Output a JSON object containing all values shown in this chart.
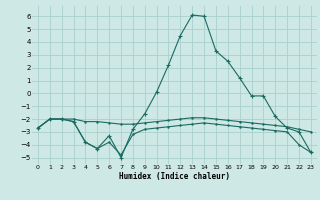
{
  "xlabel": "Humidex (Indice chaleur)",
  "xlim": [
    -0.5,
    23.5
  ],
  "ylim": [
    -5.5,
    6.8
  ],
  "xticks": [
    0,
    1,
    2,
    3,
    4,
    5,
    6,
    7,
    8,
    9,
    10,
    11,
    12,
    13,
    14,
    15,
    16,
    17,
    18,
    19,
    20,
    21,
    22,
    23
  ],
  "yticks": [
    -5,
    -4,
    -3,
    -2,
    -1,
    0,
    1,
    2,
    3,
    4,
    5,
    6
  ],
  "background_color": "#cde8e5",
  "grid_color": "#a8d0cc",
  "line_color": "#1a6b60",
  "line1_x": [
    0,
    1,
    2,
    3,
    4,
    5,
    6,
    7,
    8,
    9,
    10,
    11,
    12,
    13,
    14,
    15,
    16,
    17,
    18,
    19,
    20,
    21,
    22,
    23
  ],
  "line1_y": [
    -2.7,
    -2.0,
    -2.0,
    -2.2,
    -3.8,
    -4.3,
    -3.3,
    -5.0,
    -2.8,
    -1.6,
    0.1,
    2.2,
    4.5,
    6.1,
    6.0,
    3.3,
    2.5,
    1.2,
    -0.2,
    -0.2,
    -1.8,
    -2.7,
    -3.0,
    -4.6
  ],
  "line2_x": [
    0,
    1,
    2,
    3,
    4,
    5,
    6,
    7,
    8,
    9,
    10,
    11,
    12,
    13,
    14,
    15,
    16,
    17,
    18,
    19,
    20,
    21,
    22,
    23
  ],
  "line2_y": [
    -2.7,
    -2.0,
    -2.0,
    -2.0,
    -2.2,
    -2.2,
    -2.3,
    -2.4,
    -2.4,
    -2.3,
    -2.2,
    -2.1,
    -2.0,
    -1.9,
    -1.9,
    -2.0,
    -2.1,
    -2.2,
    -2.3,
    -2.4,
    -2.5,
    -2.6,
    -2.8,
    -3.0
  ],
  "line3_x": [
    0,
    1,
    2,
    3,
    4,
    5,
    6,
    7,
    8,
    9,
    10,
    11,
    12,
    13,
    14,
    15,
    16,
    17,
    18,
    19,
    20,
    21,
    22,
    23
  ],
  "line3_y": [
    -2.7,
    -2.0,
    -2.0,
    -2.2,
    -3.8,
    -4.3,
    -3.8,
    -4.8,
    -3.2,
    -2.8,
    -2.7,
    -2.6,
    -2.5,
    -2.4,
    -2.3,
    -2.4,
    -2.5,
    -2.6,
    -2.7,
    -2.8,
    -2.9,
    -3.0,
    -4.0,
    -4.6
  ]
}
